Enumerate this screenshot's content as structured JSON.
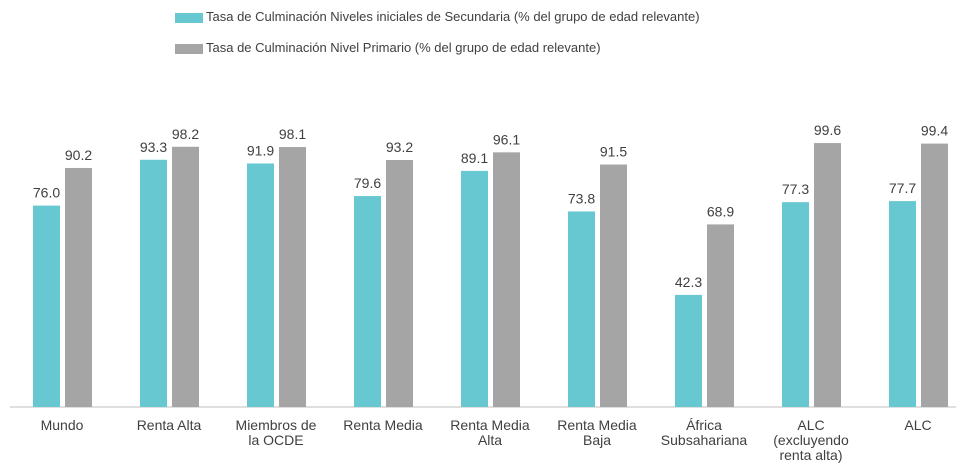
{
  "chart_data": {
    "type": "bar",
    "categories": [
      "Mundo",
      "Renta Alta",
      "Miembros de la OCDE",
      "Renta Media",
      "Renta Media Alta",
      "Renta Media Baja",
      "África Subsahariana",
      "ALC (excluyendo renta alta)",
      "ALC"
    ],
    "series": [
      {
        "name": "Tasa de Culminación Niveles iniciales de Secundaria (% del grupo de edad relevante)",
        "color": "#68c8d1",
        "values": [
          76.0,
          93.3,
          91.9,
          79.6,
          89.1,
          73.8,
          42.3,
          77.3,
          77.7
        ],
        "value_labels": [
          "76.0",
          "93.3",
          "91.9",
          "79.6",
          "89.1",
          "73.8",
          "42.3",
          "77.3",
          "77.7"
        ]
      },
      {
        "name": "Tasa de Culminación Nivel Primario (% del grupo de edad relevante)",
        "color": "#a5a5a5",
        "values": [
          90.2,
          98.2,
          98.1,
          93.2,
          96.1,
          91.5,
          68.9,
          99.6,
          99.4
        ],
        "value_labels": [
          "90.2",
          "98.2",
          "98.1",
          "93.2",
          "96.1",
          "91.5",
          "68.9",
          "99.6",
          "99.4"
        ]
      }
    ],
    "legend": "top",
    "grid": false
  }
}
